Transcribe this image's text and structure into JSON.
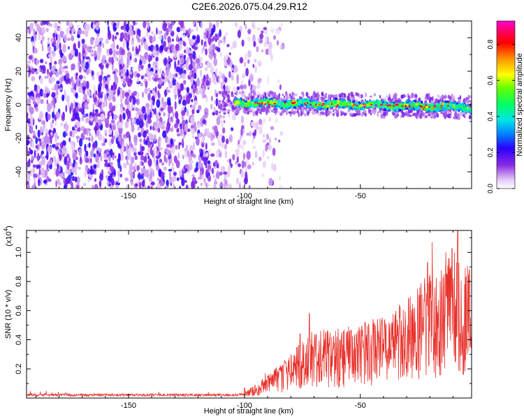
{
  "title": "C2E6.2026.075.04.29.R12",
  "chart_data": [
    {
      "type": "heatmap",
      "title": "C2E6.2026.075.04.29.R12",
      "xlabel": "Height of straight line (km)",
      "ylabel": "Frequency (Hz)",
      "xlim": [
        -194,
        -2
      ],
      "ylim": [
        -50,
        50
      ],
      "x_ticks": [
        -150,
        -100,
        -50
      ],
      "y_ticks": [
        -40,
        -20,
        0,
        20,
        40
      ],
      "x_tick_labels": [
        "-150",
        "-100",
        "-50"
      ],
      "y_tick_labels": [
        "-40",
        "-20",
        "0",
        "20",
        "40"
      ],
      "colorbar": {
        "label": "Normalized spectral amplitude",
        "range": [
          0,
          0.93
        ],
        "ticks": [
          0.0,
          0.2,
          0.4,
          0.6,
          0.8
        ],
        "tick_labels": [
          "0.0",
          "0.2",
          "0.4",
          "0.6",
          "0.8"
        ],
        "colormap": "rainbow (white-purple-blue-cyan-green-yellow-orange-red-magenta)"
      },
      "features": [
        {
          "name": "noise-field",
          "x_range": [
            -194,
            -95
          ],
          "y_range": [
            -50,
            50
          ],
          "amplitude": "0.05-0.25"
        },
        {
          "name": "signal-band",
          "x_range": [
            -112,
            -2
          ],
          "center_freq_start": 1.5,
          "center_freq_end": -1.5,
          "half_width": 2.5,
          "peak_amplitude": 0.9
        }
      ]
    },
    {
      "type": "line",
      "xlabel": "Height of straight line (km)",
      "ylabel": "SNR (10 * v/v)",
      "y_exponent_label": "(x10",
      "y_exponent_power": "4",
      "y_exponent_close": ")",
      "xlim": [
        -194,
        -2
      ],
      "ylim": [
        0,
        1.15
      ],
      "x_ticks": [
        -150,
        -100,
        -50
      ],
      "y_ticks": [
        0.2,
        0.4,
        0.6,
        0.8,
        1.0
      ],
      "x_tick_labels": [
        "-150",
        "-100",
        "-50"
      ],
      "y_tick_labels": [
        "0.2",
        "0.4",
        "0.6",
        "0.8",
        "1.0"
      ],
      "series_color": "#e8302a",
      "envelope": [
        {
          "x": -194,
          "y": 0.02
        },
        {
          "x": -110,
          "y": 0.02
        },
        {
          "x": -100,
          "y": 0.04
        },
        {
          "x": -90,
          "y": 0.15
        },
        {
          "x": -80,
          "y": 0.3
        },
        {
          "x": -70,
          "y": 0.45
        },
        {
          "x": -60,
          "y": 0.45
        },
        {
          "x": -50,
          "y": 0.5
        },
        {
          "x": -40,
          "y": 0.55
        },
        {
          "x": -30,
          "y": 0.65
        },
        {
          "x": -20,
          "y": 0.85
        },
        {
          "x": -10,
          "y": 1.0
        },
        {
          "x": -2,
          "y": 0.85
        }
      ],
      "spikes": [
        {
          "x": -100,
          "y": 0.07
        },
        {
          "x": -91,
          "y": 0.17
        },
        {
          "x": -83,
          "y": 0.22
        },
        {
          "x": -76,
          "y": 0.44
        },
        {
          "x": -72,
          "y": 0.58
        },
        {
          "x": -65,
          "y": 0.45
        },
        {
          "x": -56,
          "y": 0.45
        },
        {
          "x": -48,
          "y": 0.52
        },
        {
          "x": -42,
          "y": 0.42
        },
        {
          "x": -33,
          "y": 0.55
        },
        {
          "x": -24,
          "y": 0.7
        },
        {
          "x": -21,
          "y": 0.93
        },
        {
          "x": -19,
          "y": 1.07
        },
        {
          "x": -12,
          "y": 0.96
        },
        {
          "x": -8,
          "y": 1.17
        },
        {
          "x": -5,
          "y": 0.78
        },
        {
          "x": -3,
          "y": 0.88
        }
      ]
    }
  ]
}
